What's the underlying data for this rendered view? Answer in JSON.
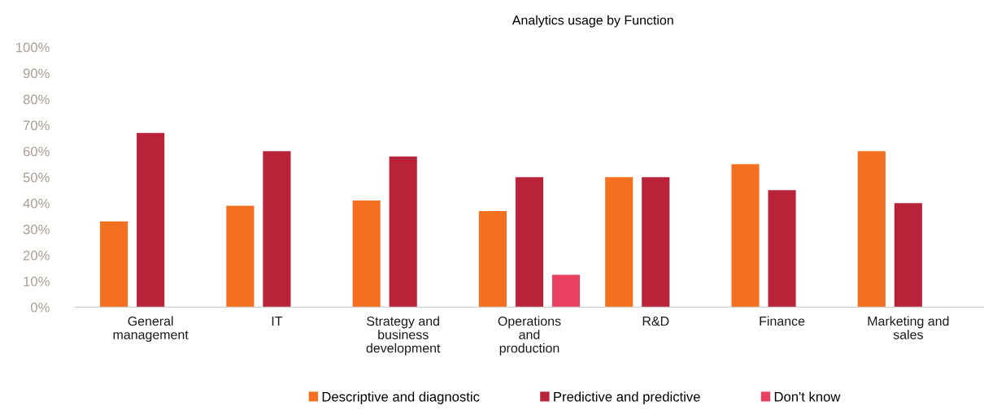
{
  "chart_data": {
    "type": "bar",
    "title": "Analytics usage by Function",
    "categories": [
      "General management",
      "IT",
      "Strategy and business development",
      "Operations and production",
      "R&D",
      "Finance",
      "Marketing and sales"
    ],
    "series": [
      {
        "name": "Descriptive and diagnostic",
        "color": "#f37021",
        "values": [
          33,
          39,
          41,
          37,
          50,
          55,
          60
        ]
      },
      {
        "name": "Predictive and predictive",
        "color": "#b8233a",
        "values": [
          67,
          60,
          58,
          50,
          50,
          45,
          40
        ]
      },
      {
        "name": "Don't know",
        "color": "#e8405e",
        "values": [
          null,
          null,
          null,
          12.5,
          null,
          null,
          null
        ]
      }
    ],
    "ylim": [
      0,
      100
    ],
    "yticks": [
      {
        "value": 0,
        "label": "0%"
      },
      {
        "value": 10,
        "label": "10%"
      },
      {
        "value": 20,
        "label": "20%"
      },
      {
        "value": 30,
        "label": "30%"
      },
      {
        "value": 40,
        "label": "40%"
      },
      {
        "value": 50,
        "label": "50%"
      },
      {
        "value": 60,
        "label": "60%"
      },
      {
        "value": 70,
        "label": "70%"
      },
      {
        "value": 80,
        "label": "80%"
      },
      {
        "value": 90,
        "label": "90%"
      },
      {
        "value": 100,
        "label": "100%"
      }
    ],
    "grid": false,
    "legend": "bottom"
  }
}
